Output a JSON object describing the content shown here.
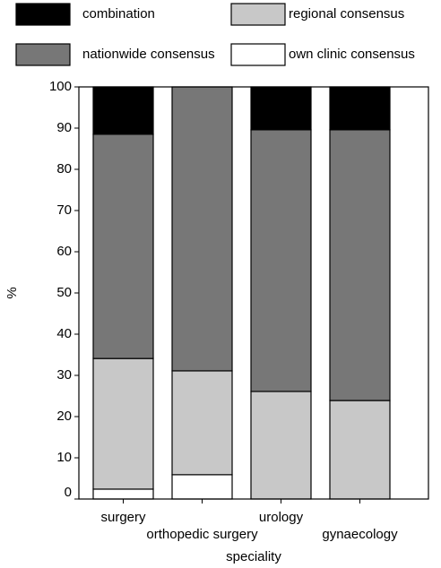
{
  "chart_data": {
    "type": "stacked_bar",
    "categories": [
      "surgery",
      "orthopedic surgery",
      "urology",
      "gynaecology"
    ],
    "series": [
      {
        "name": "own clinic consensus",
        "color": "#ffffff",
        "values": [
          2.4,
          5.9,
          0,
          0
        ]
      },
      {
        "name": "regional consensus",
        "color": "#c8c8c8",
        "values": [
          31.7,
          25.2,
          26.1,
          23.9
        ]
      },
      {
        "name": "nationwide consensus",
        "color": "#777777",
        "values": [
          54.4,
          68.9,
          63.5,
          65.7
        ]
      },
      {
        "name": "combination",
        "color": "#000000",
        "values": [
          11.5,
          0,
          10.4,
          10.4
        ]
      }
    ],
    "y_label": "%",
    "x_label": "speciality",
    "ylim": [
      0,
      100
    ],
    "yticks": [
      0,
      10,
      20,
      30,
      40,
      50,
      60,
      70,
      80,
      90,
      100
    ]
  }
}
